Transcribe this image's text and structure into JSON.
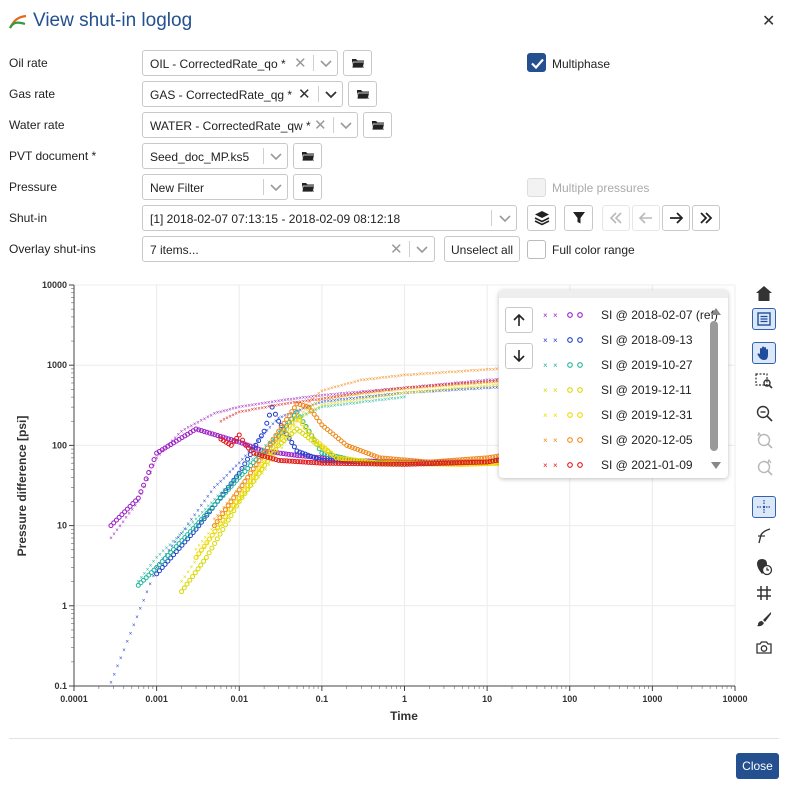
{
  "dialog": {
    "title": "View shut-in loglog",
    "close_label": "Close"
  },
  "form": {
    "oil_rate": {
      "label": "Oil rate",
      "value": "OIL - CorrectedRate_qo *"
    },
    "gas_rate": {
      "label": "Gas rate",
      "value": "GAS - CorrectedRate_qg *"
    },
    "water_rate": {
      "label": "Water rate",
      "value": "WATER - CorrectedRate_qw *"
    },
    "pvt_document": {
      "label": "PVT document *",
      "value": "Seed_doc_MP.ks5"
    },
    "pressure": {
      "label": "Pressure",
      "value": "New Filter"
    },
    "shut_in": {
      "label": "Shut-in",
      "value": "[1] 2018-02-07 07:13:15 - 2018-02-09 08:12:18"
    },
    "overlay": {
      "label": "Overlay shut-ins",
      "value": "7 items...",
      "unselect_label": "Unselect all"
    },
    "multiphase": {
      "label": "Multiphase",
      "checked": true
    },
    "multiple_pressures": {
      "label": "Multiple pressures",
      "checked": false,
      "disabled": true
    },
    "full_color_range": {
      "label": "Full color range",
      "checked": false
    }
  },
  "icons": {
    "folder": "folder-icon",
    "layers": "layers-icon",
    "filter": "filter-icon",
    "first": "double-left-icon",
    "prev": "arrow-left-icon",
    "next": "arrow-right-icon",
    "last": "double-right-icon"
  },
  "chart_data": {
    "type": "scatter",
    "xlabel": "Time",
    "ylabel": "Pressure difference [psi]",
    "x_scale": "log",
    "y_scale": "log",
    "xlim": [
      0.0001,
      10000
    ],
    "ylim": [
      0.1,
      10000
    ],
    "x_ticks": [
      "0.0001",
      "0.001",
      "0.01",
      "0.1",
      "1",
      "10",
      "100",
      "1000",
      "10000"
    ],
    "y_ticks": [
      "0.1",
      "1",
      "10",
      "100",
      "1000",
      "10000"
    ],
    "grid": true,
    "legend_position": "top-right",
    "series": [
      {
        "name": "SI @ 2018-02-07 (ref)",
        "color": "#9b1fc4",
        "pressure": [
          [
            0.00028,
            7
          ],
          [
            0.0006,
            20
          ],
          [
            0.001,
            70
          ],
          [
            0.002,
            150
          ],
          [
            0.005,
            250
          ],
          [
            0.01,
            300
          ],
          [
            0.03,
            360
          ],
          [
            0.1,
            420
          ],
          [
            1,
            520
          ],
          [
            10,
            650
          ],
          [
            100,
            770
          ]
        ],
        "derivative": [
          [
            0.00028,
            10
          ],
          [
            0.0006,
            22
          ],
          [
            0.001,
            80
          ],
          [
            0.003,
            160
          ],
          [
            0.01,
            110
          ],
          [
            0.02,
            85
          ],
          [
            0.05,
            75
          ],
          [
            0.2,
            65
          ],
          [
            1,
            62
          ],
          [
            10,
            62
          ],
          [
            100,
            100
          ]
        ]
      },
      {
        "name": "SI @ 2018-09-13",
        "color": "#1f3fcc",
        "pressure": [
          [
            0.00028,
            0.11
          ],
          [
            0.001,
            3
          ],
          [
            0.002,
            8
          ],
          [
            0.005,
            30
          ],
          [
            0.01,
            60
          ],
          [
            0.02,
            140
          ],
          [
            0.03,
            220
          ],
          [
            0.1,
            350
          ],
          [
            1,
            450
          ],
          [
            10,
            520
          ],
          [
            100,
            600
          ]
        ],
        "derivative": [
          [
            0.001,
            2.5
          ],
          [
            0.003,
            9
          ],
          [
            0.01,
            45
          ],
          [
            0.02,
            150
          ],
          [
            0.025,
            300
          ],
          [
            0.03,
            200
          ],
          [
            0.05,
            85
          ],
          [
            0.1,
            65
          ],
          [
            1,
            60
          ],
          [
            10,
            62
          ],
          [
            100,
            90
          ]
        ]
      },
      {
        "name": "SI @ 2019-10-27",
        "color": "#20b59a",
        "pressure": [
          [
            0.0006,
            2
          ],
          [
            0.001,
            4
          ],
          [
            0.003,
            12
          ],
          [
            0.01,
            45
          ],
          [
            0.03,
            150
          ],
          [
            0.05,
            220
          ],
          [
            0.1,
            300
          ],
          [
            1,
            400
          ]
        ],
        "derivative": [
          [
            0.0006,
            1.8
          ],
          [
            0.001,
            3
          ],
          [
            0.003,
            10
          ],
          [
            0.01,
            40
          ],
          [
            0.03,
            130
          ],
          [
            0.05,
            260
          ],
          [
            0.07,
            150
          ],
          [
            0.1,
            80
          ],
          [
            0.3,
            62
          ],
          [
            1,
            60
          ]
        ]
      },
      {
        "name": "SI @ 2019-12-11",
        "color": "#d8d900",
        "pressure": [
          [
            0.002,
            2
          ],
          [
            0.005,
            8
          ],
          [
            0.01,
            20
          ],
          [
            0.03,
            80
          ],
          [
            0.05,
            200
          ],
          [
            0.1,
            320
          ],
          [
            1,
            450
          ],
          [
            10,
            550
          ],
          [
            100,
            650
          ]
        ],
        "derivative": [
          [
            0.002,
            1.5
          ],
          [
            0.004,
            4
          ],
          [
            0.01,
            20
          ],
          [
            0.03,
            100
          ],
          [
            0.05,
            160
          ],
          [
            0.08,
            110
          ],
          [
            0.15,
            70
          ],
          [
            0.5,
            60
          ],
          [
            5,
            58
          ],
          [
            50,
            65
          ],
          [
            150,
            110
          ]
        ]
      },
      {
        "name": "SI @ 2019-12-31",
        "color": "#f0d800",
        "pressure": [
          [
            0.003,
            5
          ],
          [
            0.01,
            25
          ],
          [
            0.03,
            100
          ],
          [
            0.06,
            260
          ],
          [
            0.1,
            380
          ],
          [
            1,
            500
          ],
          [
            10,
            600
          ],
          [
            100,
            700
          ]
        ],
        "derivative": [
          [
            0.003,
            4
          ],
          [
            0.01,
            22
          ],
          [
            0.03,
            120
          ],
          [
            0.05,
            230
          ],
          [
            0.08,
            120
          ],
          [
            0.15,
            70
          ],
          [
            0.5,
            60
          ],
          [
            5,
            58
          ],
          [
            50,
            62
          ]
        ]
      },
      {
        "name": "SI @ 2020-12-05",
        "color": "#f08a1a",
        "pressure": [
          [
            0.005,
            12
          ],
          [
            0.01,
            30
          ],
          [
            0.03,
            120
          ],
          [
            0.05,
            250
          ],
          [
            0.1,
            480
          ],
          [
            0.3,
            650
          ],
          [
            1,
            750
          ],
          [
            10,
            880
          ],
          [
            100,
            1000
          ],
          [
            200,
            1050
          ]
        ],
        "derivative": [
          [
            0.005,
            10
          ],
          [
            0.01,
            28
          ],
          [
            0.03,
            150
          ],
          [
            0.05,
            330
          ],
          [
            0.07,
            300
          ],
          [
            0.1,
            180
          ],
          [
            0.2,
            100
          ],
          [
            0.5,
            70
          ],
          [
            2,
            62
          ],
          [
            10,
            70
          ],
          [
            50,
            90
          ],
          [
            150,
            110
          ]
        ]
      },
      {
        "name": "SI @ 2021-01-09",
        "color": "#e01818",
        "pressure": [
          [
            0.006,
            200
          ],
          [
            0.01,
            260
          ],
          [
            0.03,
            320
          ],
          [
            0.1,
            380
          ],
          [
            0.3,
            450
          ],
          [
            1,
            520
          ],
          [
            10,
            620
          ],
          [
            100,
            720
          ],
          [
            200,
            760
          ]
        ],
        "derivative": [
          [
            0.006,
            120
          ],
          [
            0.008,
            100
          ],
          [
            0.01,
            135
          ],
          [
            0.012,
            100
          ],
          [
            0.015,
            80
          ],
          [
            0.03,
            65
          ],
          [
            0.1,
            60
          ],
          [
            1,
            58
          ],
          [
            10,
            62
          ],
          [
            20,
            70
          ]
        ]
      }
    ]
  }
}
